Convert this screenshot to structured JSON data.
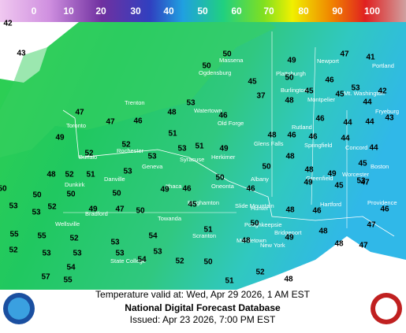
{
  "legend": {
    "ticks": [
      0,
      10,
      20,
      30,
      40,
      50,
      60,
      70,
      80,
      90,
      100
    ]
  },
  "temperatures": [
    42,
    43,
    50,
    50,
    49,
    47,
    41,
    45,
    50,
    46,
    53,
    42,
    37,
    48,
    45,
    45,
    44,
    53,
    48,
    47,
    47,
    46,
    46,
    46,
    44,
    44,
    43,
    49,
    52,
    51,
    53,
    51,
    49,
    48,
    46,
    46,
    44,
    44,
    52,
    53,
    48,
    53,
    50,
    45,
    48,
    52,
    51,
    50,
    48,
    49,
    45,
    53,
    50,
    49,
    46,
    50,
    47,
    49,
    50,
    50,
    45,
    46,
    53,
    52,
    49,
    50,
    47,
    48,
    46,
    55,
    53,
    52,
    54,
    51,
    48,
    46,
    47,
    50,
    55,
    53,
    53,
    52,
    50,
    49,
    48,
    47,
    53,
    53,
    52,
    54,
    53,
    54,
    57,
    55,
    51,
    52,
    48,
    48
  ],
  "cities": [
    "Trenton",
    "Toronto",
    "Ogdensburg",
    "Massena",
    "Plattsburgh",
    "Newport",
    "Burlington",
    "Montpelier",
    "Mt. Washington",
    "Portland",
    "Fryeburg",
    "Watertown",
    "Old Forge",
    "Rutland",
    "Springfield",
    "Concord",
    "Glens Falls",
    "Syracuse",
    "Herkimer",
    "Rochester",
    "Buffalo",
    "Geneva",
    "Dunkirk",
    "Danville",
    "Albany",
    "Hunter",
    "Ithaca",
    "Oneonta",
    "Boston",
    "Worcester",
    "Greenfield",
    "Hartford",
    "Providence",
    "Binghamton",
    "Slide Mountain",
    "Bradford",
    "Towanda",
    "Scranton",
    "New York",
    "Bridgeport",
    "State College",
    "Wellsville",
    "Poughkeepsie",
    "Middletown"
  ],
  "footer": {
    "valid": "Temperature valid at: Wed, Apr 29 2026, 1 AM EST",
    "title": "National Digital Forecast Database",
    "issued": "Issued: Apr 23 2026, 7:00 PM EST"
  }
}
